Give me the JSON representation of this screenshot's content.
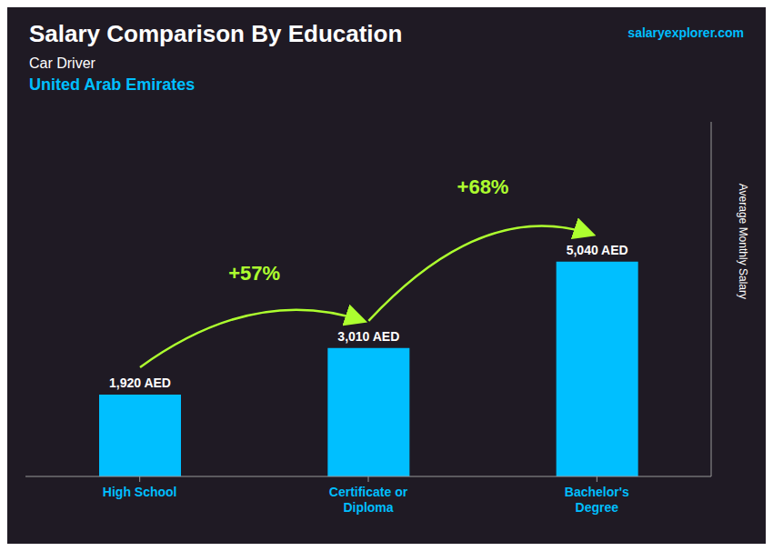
{
  "chart_data": {
    "type": "bar",
    "title": "Salary Comparison By Education",
    "subtitle": [
      "Car Driver",
      "United Arab Emirates"
    ],
    "source": "salaryexplorer.com",
    "y_label": "Average Monthly Salary",
    "categories": [
      "High School",
      "Certificate or\nDiploma",
      "Bachelor's\nDegree"
    ],
    "values": [
      1920,
      3010,
      5040
    ],
    "value_labels": [
      "1,920 AED",
      "3,010 AED",
      "5,040 AED"
    ],
    "data_labels": true,
    "color": "#00BFFF",
    "ylim": [
      0,
      8316
    ],
    "tick_labels": "x",
    "grid": false,
    "annotations": [
      {
        "text": "+57%",
        "color": "#ADFF2F"
      },
      {
        "text": "+68%",
        "color": "#ADFF2F"
      }
    ]
  }
}
